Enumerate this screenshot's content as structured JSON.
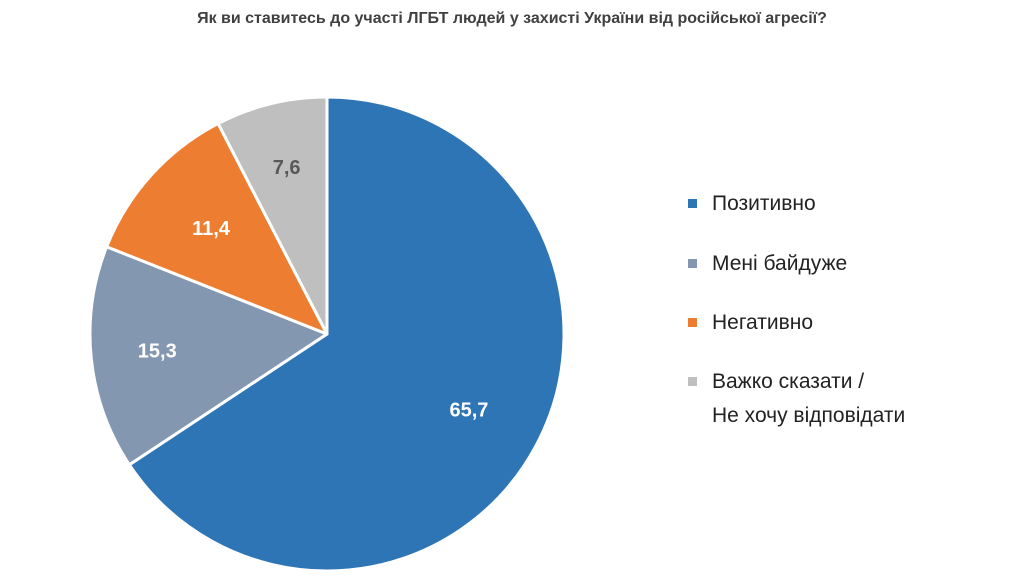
{
  "chart_data": {
    "type": "pie",
    "title": "Як ви ставитесь до участі ЛГБТ людей у захисті України від російської агресії?",
    "slices": [
      {
        "label": "Позитивно",
        "value": 65.7,
        "display": "65,7",
        "color": "#2E75B6",
        "label_color": "#FFFFFF"
      },
      {
        "label": "Мені байдуже",
        "value": 15.3,
        "display": "15,3",
        "color": "#8497B0",
        "label_color": "#FFFFFF"
      },
      {
        "label": "Негативно",
        "value": 11.4,
        "display": "11,4",
        "color": "#ED7D31",
        "label_color": "#FFFFFF"
      },
      {
        "label": "Важко сказати / Не хочу відповідати",
        "value": 7.6,
        "display": "7,6",
        "color": "#BFBFBF",
        "label_color": "#595959"
      }
    ],
    "legend": {
      "position": "right",
      "items": [
        {
          "lines": [
            "Позитивно"
          ],
          "color": "#2E75B6"
        },
        {
          "lines": [
            "Мені байдуже"
          ],
          "color": "#8497B0"
        },
        {
          "lines": [
            "Негативно"
          ],
          "color": "#ED7D31"
        },
        {
          "lines": [
            "Важко сказати /",
            "Не хочу відповідати"
          ],
          "color": "#BFBFBF"
        }
      ]
    },
    "start_angle": "12 o'clock",
    "direction": "clockwise"
  }
}
